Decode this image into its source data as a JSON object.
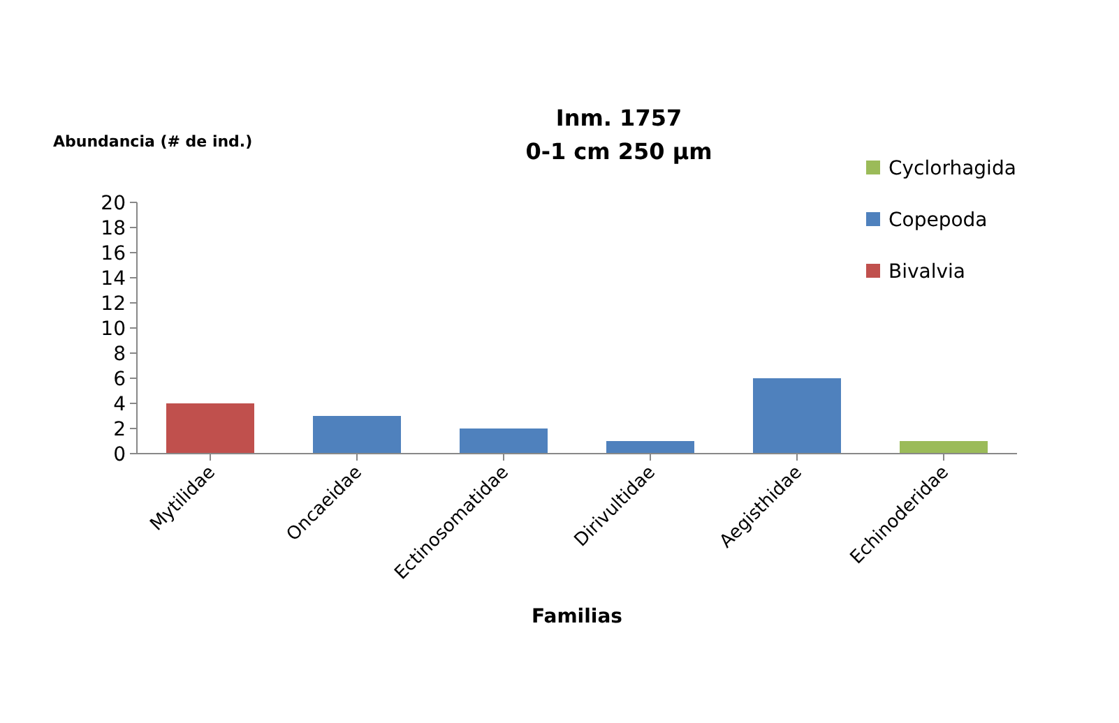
{
  "chart_data": {
    "type": "bar",
    "title": "Inm. 1757\n0-1 cm 250 µm",
    "xlabel": "Familias",
    "ylabel": "Abundancia  (# de ind.)",
    "categories": [
      "Mytilidae",
      "Oncaeidae",
      "Ectinosomatidae",
      "Dirivultidae",
      "Aegisthidae",
      "Echinoderidae"
    ],
    "series": [
      {
        "name": "Cyclorhagida",
        "color": "#9bbb59",
        "values": [
          null,
          null,
          null,
          null,
          null,
          1
        ]
      },
      {
        "name": "Copepoda",
        "color": "#4f81bd",
        "values": [
          null,
          3,
          2,
          1,
          6,
          null
        ]
      },
      {
        "name": "Bivalvia",
        "color": "#c0504d",
        "values": [
          4,
          null,
          null,
          null,
          null,
          null
        ]
      }
    ],
    "ylim": [
      0,
      20
    ],
    "yticks": [
      0,
      2,
      4,
      6,
      8,
      10,
      12,
      14,
      16,
      18,
      20
    ],
    "grid": false,
    "legend": "right"
  }
}
